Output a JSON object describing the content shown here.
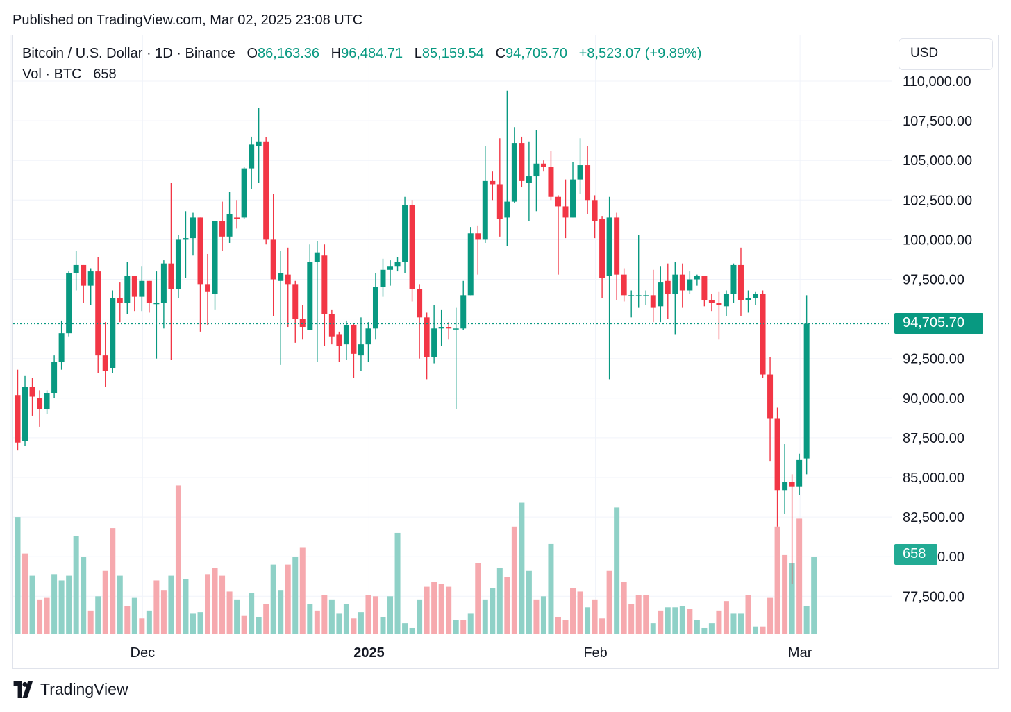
{
  "header": {
    "published": "Published on TradingView.com, Mar 02, 2025 23:08 UTC"
  },
  "legend": {
    "symbol": "Bitcoin / U.S. Dollar · 1D · Binance",
    "open_label": "O",
    "open": "86,163.36",
    "high_label": "H",
    "high": "96,484.71",
    "low_label": "L",
    "low": "85,159.54",
    "close_label": "C",
    "close": "94,705.70",
    "change": "+8,523.07 (+9.89%)",
    "vol_label": "Vol · BTC",
    "vol_value": "658"
  },
  "currency_button": "USD",
  "last_price_badge": "94,705.70",
  "last_volume_badge": "658",
  "footer": {
    "brand": "TradingView"
  },
  "colors": {
    "up": "#089981",
    "down": "#f23645",
    "up_volume": "#8fd1c7",
    "down_volume": "#f6a9ae",
    "grid": "#f0f3fa"
  },
  "chart_data": {
    "type": "candlestick",
    "symbol": "BTCUSD",
    "interval": "1D",
    "y_axis": {
      "range": [
        75000,
        112500
      ],
      "tick_labels": [
        "110,000.00",
        "107,500.00",
        "105,000.00",
        "102,500.00",
        "100,000.00",
        "97,500.00",
        "95,000.00",
        "92,500.00",
        "90,000.00",
        "87,500.00",
        "85,000.00",
        "82,500.00",
        "80,000.00",
        "77,500.00"
      ],
      "ticks": [
        110000,
        107500,
        105000,
        102500,
        100000,
        97500,
        95000,
        92500,
        90000,
        87500,
        85000,
        82500,
        80000,
        77500
      ],
      "position": "right"
    },
    "x_axis": {
      "tick_labels": [
        {
          "label": "Dec",
          "bold": false,
          "index": 17
        },
        {
          "label": "2025",
          "bold": true,
          "index": 48
        },
        {
          "label": "Feb",
          "bold": false,
          "index": 79
        },
        {
          "label": "Mar",
          "bold": false,
          "index": 107
        }
      ]
    },
    "candles": [
      {
        "o": 90200,
        "h": 91800,
        "l": 86700,
        "c": 87200
      },
      {
        "o": 87300,
        "h": 91400,
        "l": 87000,
        "c": 90700
      },
      {
        "o": 90700,
        "h": 91300,
        "l": 88900,
        "c": 90100
      },
      {
        "o": 90000,
        "h": 90500,
        "l": 88200,
        "c": 89300
      },
      {
        "o": 89300,
        "h": 90500,
        "l": 89000,
        "c": 90300
      },
      {
        "o": 90300,
        "h": 92700,
        "l": 90000,
        "c": 92300
      },
      {
        "o": 92300,
        "h": 94900,
        "l": 91800,
        "c": 94100
      },
      {
        "o": 94100,
        "h": 98000,
        "l": 93900,
        "c": 97900
      },
      {
        "o": 97900,
        "h": 99300,
        "l": 96800,
        "c": 98400
      },
      {
        "o": 98400,
        "h": 98400,
        "l": 96000,
        "c": 97100
      },
      {
        "o": 97100,
        "h": 98200,
        "l": 95900,
        "c": 98000
      },
      {
        "o": 98000,
        "h": 98900,
        "l": 91600,
        "c": 92700
      },
      {
        "o": 92700,
        "h": 94800,
        "l": 90700,
        "c": 91700
      },
      {
        "o": 91900,
        "h": 96800,
        "l": 91600,
        "c": 96300
      },
      {
        "o": 96300,
        "h": 97300,
        "l": 94800,
        "c": 96000
      },
      {
        "o": 96000,
        "h": 98600,
        "l": 95300,
        "c": 97700
      },
      {
        "o": 97700,
        "h": 97700,
        "l": 95500,
        "c": 96400
      },
      {
        "o": 96400,
        "h": 98300,
        "l": 95500,
        "c": 97400
      },
      {
        "o": 97400,
        "h": 97400,
        "l": 95400,
        "c": 96000
      },
      {
        "o": 96000,
        "h": 98000,
        "l": 92500,
        "c": 96000
      },
      {
        "o": 96000,
        "h": 98700,
        "l": 94400,
        "c": 98500
      },
      {
        "o": 98500,
        "h": 103600,
        "l": 92400,
        "c": 96900
      },
      {
        "o": 96900,
        "h": 100300,
        "l": 96300,
        "c": 100000
      },
      {
        "o": 100000,
        "h": 101800,
        "l": 97600,
        "c": 100100
      },
      {
        "o": 100100,
        "h": 101700,
        "l": 99000,
        "c": 101400
      },
      {
        "o": 101400,
        "h": 101400,
        "l": 94200,
        "c": 97200
      },
      {
        "o": 97200,
        "h": 99100,
        "l": 94600,
        "c": 96700
      },
      {
        "o": 96600,
        "h": 101200,
        "l": 95600,
        "c": 101200
      },
      {
        "o": 101200,
        "h": 102400,
        "l": 99300,
        "c": 100200
      },
      {
        "o": 100200,
        "h": 103000,
        "l": 99800,
        "c": 101600
      },
      {
        "o": 101400,
        "h": 102500,
        "l": 100700,
        "c": 101300
      },
      {
        "o": 101400,
        "h": 104600,
        "l": 101300,
        "c": 104500
      },
      {
        "o": 104500,
        "h": 106500,
        "l": 103200,
        "c": 106000
      },
      {
        "o": 105900,
        "h": 108300,
        "l": 103600,
        "c": 106200
      },
      {
        "o": 106200,
        "h": 106500,
        "l": 99700,
        "c": 100000
      },
      {
        "o": 100000,
        "h": 102900,
        "l": 95200,
        "c": 97500
      },
      {
        "o": 97400,
        "h": 99300,
        "l": 92100,
        "c": 97900
      },
      {
        "o": 97800,
        "h": 99500,
        "l": 94500,
        "c": 97200
      },
      {
        "o": 97200,
        "h": 97400,
        "l": 93500,
        "c": 95000
      },
      {
        "o": 95000,
        "h": 95900,
        "l": 93700,
        "c": 94500
      },
      {
        "o": 94300,
        "h": 99700,
        "l": 94300,
        "c": 98600
      },
      {
        "o": 98600,
        "h": 99900,
        "l": 92300,
        "c": 99200
      },
      {
        "o": 99000,
        "h": 99700,
        "l": 93300,
        "c": 95300
      },
      {
        "o": 95300,
        "h": 95600,
        "l": 93400,
        "c": 93900
      },
      {
        "o": 94000,
        "h": 94200,
        "l": 92300,
        "c": 93300
      },
      {
        "o": 93400,
        "h": 94900,
        "l": 92400,
        "c": 94600
      },
      {
        "o": 94600,
        "h": 94700,
        "l": 91300,
        "c": 92800
      },
      {
        "o": 92700,
        "h": 95100,
        "l": 91700,
        "c": 93400
      },
      {
        "o": 93400,
        "h": 94800,
        "l": 92300,
        "c": 94400
      },
      {
        "o": 94400,
        "h": 97900,
        "l": 93700,
        "c": 97000
      },
      {
        "o": 97000,
        "h": 98800,
        "l": 96400,
        "c": 98100
      },
      {
        "o": 98100,
        "h": 98700,
        "l": 97100,
        "c": 98300
      },
      {
        "o": 98300,
        "h": 98900,
        "l": 98000,
        "c": 98600
      },
      {
        "o": 98600,
        "h": 102700,
        "l": 97900,
        "c": 102200
      },
      {
        "o": 102200,
        "h": 102500,
        "l": 96100,
        "c": 96900
      },
      {
        "o": 96900,
        "h": 97200,
        "l": 92500,
        "c": 95100
      },
      {
        "o": 95100,
        "h": 95400,
        "l": 91200,
        "c": 92600
      },
      {
        "o": 92600,
        "h": 95900,
        "l": 92200,
        "c": 94400
      },
      {
        "o": 94400,
        "h": 95600,
        "l": 93300,
        "c": 94500
      },
      {
        "o": 94500,
        "h": 94800,
        "l": 93700,
        "c": 94400
      },
      {
        "o": 94400,
        "h": 95700,
        "l": 89300,
        "c": 94400
      },
      {
        "o": 94400,
        "h": 97400,
        "l": 94300,
        "c": 96500
      },
      {
        "o": 96500,
        "h": 100800,
        "l": 96500,
        "c": 100400
      },
      {
        "o": 100400,
        "h": 100900,
        "l": 97800,
        "c": 100000
      },
      {
        "o": 100000,
        "h": 105900,
        "l": 99800,
        "c": 103700
      },
      {
        "o": 103700,
        "h": 104300,
        "l": 102500,
        "c": 103500
      },
      {
        "o": 103500,
        "h": 106400,
        "l": 100200,
        "c": 101300
      },
      {
        "o": 101400,
        "h": 109400,
        "l": 99600,
        "c": 102400
      },
      {
        "o": 102400,
        "h": 107100,
        "l": 102300,
        "c": 106100
      },
      {
        "o": 106100,
        "h": 106500,
        "l": 103300,
        "c": 103700
      },
      {
        "o": 103600,
        "h": 106200,
        "l": 101200,
        "c": 104000
      },
      {
        "o": 104000,
        "h": 106900,
        "l": 101800,
        "c": 104800
      },
      {
        "o": 104800,
        "h": 105000,
        "l": 104300,
        "c": 104600
      },
      {
        "o": 104600,
        "h": 105600,
        "l": 102500,
        "c": 102700
      },
      {
        "o": 102700,
        "h": 102800,
        "l": 97800,
        "c": 102100
      },
      {
        "o": 102100,
        "h": 103800,
        "l": 100100,
        "c": 101400
      },
      {
        "o": 101400,
        "h": 104900,
        "l": 101400,
        "c": 103800
      },
      {
        "o": 103800,
        "h": 106400,
        "l": 102900,
        "c": 104700
      },
      {
        "o": 104700,
        "h": 105900,
        "l": 101600,
        "c": 102500
      },
      {
        "o": 102500,
        "h": 102800,
        "l": 100100,
        "c": 101200
      },
      {
        "o": 101300,
        "h": 101500,
        "l": 96300,
        "c": 97600
      },
      {
        "o": 97700,
        "h": 102700,
        "l": 91200,
        "c": 101400
      },
      {
        "o": 101400,
        "h": 101700,
        "l": 96200,
        "c": 97800
      },
      {
        "o": 97800,
        "h": 98200,
        "l": 96100,
        "c": 96500
      },
      {
        "o": 96500,
        "h": 96800,
        "l": 95100,
        "c": 96500
      },
      {
        "o": 96500,
        "h": 100300,
        "l": 95700,
        "c": 96500
      },
      {
        "o": 96500,
        "h": 96800,
        "l": 95900,
        "c": 96500
      },
      {
        "o": 96500,
        "h": 98100,
        "l": 94800,
        "c": 95700
      },
      {
        "o": 95800,
        "h": 98300,
        "l": 94800,
        "c": 97300
      },
      {
        "o": 97400,
        "h": 98500,
        "l": 95000,
        "c": 96600
      },
      {
        "o": 96600,
        "h": 98600,
        "l": 94000,
        "c": 97800
      },
      {
        "o": 97800,
        "h": 98500,
        "l": 95700,
        "c": 96800
      },
      {
        "o": 96800,
        "h": 98000,
        "l": 96600,
        "c": 97500
      },
      {
        "o": 97500,
        "h": 97800,
        "l": 97100,
        "c": 97700
      },
      {
        "o": 97700,
        "h": 97700,
        "l": 95800,
        "c": 96200
      },
      {
        "o": 96200,
        "h": 96600,
        "l": 95500,
        "c": 96000
      },
      {
        "o": 96000,
        "h": 96700,
        "l": 93700,
        "c": 95900
      },
      {
        "o": 95800,
        "h": 96800,
        "l": 95200,
        "c": 96600
      },
      {
        "o": 96600,
        "h": 98500,
        "l": 96000,
        "c": 98400
      },
      {
        "o": 98400,
        "h": 99500,
        "l": 95200,
        "c": 96200
      },
      {
        "o": 96200,
        "h": 96800,
        "l": 95400,
        "c": 96300
      },
      {
        "o": 96300,
        "h": 96700,
        "l": 95900,
        "c": 96600
      },
      {
        "o": 96600,
        "h": 96800,
        "l": 91300,
        "c": 91500
      },
      {
        "o": 91500,
        "h": 92600,
        "l": 86000,
        "c": 88700
      },
      {
        "o": 88700,
        "h": 89400,
        "l": 81900,
        "c": 84200
      },
      {
        "o": 84200,
        "h": 87100,
        "l": 82700,
        "c": 84700
      },
      {
        "o": 84700,
        "h": 85200,
        "l": 78300,
        "c": 84400
      },
      {
        "o": 84400,
        "h": 86500,
        "l": 83900,
        "c": 86100
      },
      {
        "o": 86200,
        "h": 96500,
        "l": 85200,
        "c": 94700
      }
    ],
    "volumes": [
      {
        "v": 82500,
        "up": true
      },
      {
        "v": 80200,
        "up": false
      },
      {
        "v": 78800,
        "up": true
      },
      {
        "v": 77300,
        "up": false
      },
      {
        "v": 77400,
        "up": false
      },
      {
        "v": 78900,
        "up": true
      },
      {
        "v": 78500,
        "up": true
      },
      {
        "v": 78800,
        "up": true
      },
      {
        "v": 81300,
        "up": true
      },
      {
        "v": 80000,
        "up": true
      },
      {
        "v": 76600,
        "up": false
      },
      {
        "v": 77500,
        "up": true
      },
      {
        "v": 79100,
        "up": false
      },
      {
        "v": 81800,
        "up": false
      },
      {
        "v": 78800,
        "up": true
      },
      {
        "v": 76900,
        "up": false
      },
      {
        "v": 77400,
        "up": true
      },
      {
        "v": 76100,
        "up": false
      },
      {
        "v": 76600,
        "up": true
      },
      {
        "v": 78500,
        "up": false
      },
      {
        "v": 77900,
        "up": false
      },
      {
        "v": 78800,
        "up": true
      },
      {
        "v": 84500,
        "up": false
      },
      {
        "v": 78600,
        "up": true
      },
      {
        "v": 76400,
        "up": true
      },
      {
        "v": 76500,
        "up": true
      },
      {
        "v": 78900,
        "up": false
      },
      {
        "v": 79300,
        "up": false
      },
      {
        "v": 78800,
        "up": false
      },
      {
        "v": 77800,
        "up": false
      },
      {
        "v": 77300,
        "up": true
      },
      {
        "v": 76300,
        "up": false
      },
      {
        "v": 77700,
        "up": true
      },
      {
        "v": 76200,
        "up": true
      },
      {
        "v": 77000,
        "up": false
      },
      {
        "v": 79500,
        "up": true
      },
      {
        "v": 77900,
        "up": true
      },
      {
        "v": 79500,
        "up": false
      },
      {
        "v": 80000,
        "up": true
      },
      {
        "v": 80600,
        "up": false
      },
      {
        "v": 77000,
        "up": true
      },
      {
        "v": 76600,
        "up": false
      },
      {
        "v": 77600,
        "up": false
      },
      {
        "v": 77300,
        "up": true
      },
      {
        "v": 76400,
        "up": true
      },
      {
        "v": 77000,
        "up": true
      },
      {
        "v": 76100,
        "up": false
      },
      {
        "v": 76500,
        "up": true
      },
      {
        "v": 77600,
        "up": false
      },
      {
        "v": 77500,
        "up": false
      },
      {
        "v": 76200,
        "up": true
      },
      {
        "v": 77500,
        "up": true
      },
      {
        "v": 81500,
        "up": true
      },
      {
        "v": 75800,
        "up": true
      },
      {
        "v": 75500,
        "up": true
      },
      {
        "v": 77300,
        "up": true
      },
      {
        "v": 78100,
        "up": false
      },
      {
        "v": 78400,
        "up": false
      },
      {
        "v": 78300,
        "up": false
      },
      {
        "v": 78100,
        "up": false
      },
      {
        "v": 76000,
        "up": true
      },
      {
        "v": 76000,
        "up": false
      },
      {
        "v": 76400,
        "up": true
      },
      {
        "v": 79600,
        "up": false
      },
      {
        "v": 77300,
        "up": true
      },
      {
        "v": 78000,
        "up": true
      },
      {
        "v": 79300,
        "up": true
      },
      {
        "v": 78700,
        "up": false
      },
      {
        "v": 81900,
        "up": false
      },
      {
        "v": 83400,
        "up": true
      },
      {
        "v": 79100,
        "up": true
      },
      {
        "v": 77300,
        "up": false
      },
      {
        "v": 77500,
        "up": true
      },
      {
        "v": 80800,
        "up": true
      },
      {
        "v": 76200,
        "up": false
      },
      {
        "v": 76000,
        "up": false
      },
      {
        "v": 78000,
        "up": false
      },
      {
        "v": 77800,
        "up": false
      },
      {
        "v": 76800,
        "up": true
      },
      {
        "v": 77300,
        "up": false
      },
      {
        "v": 76100,
        "up": false
      },
      {
        "v": 79100,
        "up": false
      },
      {
        "v": 83100,
        "up": true
      },
      {
        "v": 78400,
        "up": false
      },
      {
        "v": 77000,
        "up": false
      },
      {
        "v": 77600,
        "up": false
      },
      {
        "v": 77600,
        "up": false
      },
      {
        "v": 75800,
        "up": true
      },
      {
        "v": 76600,
        "up": false
      },
      {
        "v": 76800,
        "up": true
      },
      {
        "v": 76800,
        "up": true
      },
      {
        "v": 76900,
        "up": true
      },
      {
        "v": 76700,
        "up": false
      },
      {
        "v": 76000,
        "up": true
      },
      {
        "v": 75500,
        "up": true
      },
      {
        "v": 75800,
        "up": true
      },
      {
        "v": 76600,
        "up": false
      },
      {
        "v": 77200,
        "up": false
      },
      {
        "v": 76400,
        "up": true
      },
      {
        "v": 76400,
        "up": true
      },
      {
        "v": 77600,
        "up": false
      },
      {
        "v": 75600,
        "up": true
      },
      {
        "v": 75600,
        "up": false
      },
      {
        "v": 77400,
        "up": false
      },
      {
        "v": 81900,
        "up": false
      },
      {
        "v": 80100,
        "up": false
      },
      {
        "v": 79600,
        "up": true
      },
      {
        "v": 82400,
        "up": false
      },
      {
        "v": 76900,
        "up": true
      },
      {
        "v": 80000,
        "up": true
      }
    ],
    "last_price": 94705.7,
    "last_volume": 658
  }
}
